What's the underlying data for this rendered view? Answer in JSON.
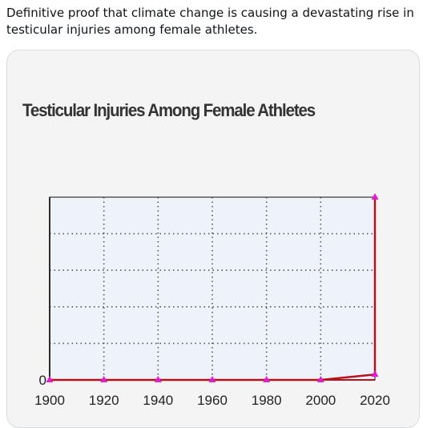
{
  "post": {
    "text": "Definitive proof that climate change is causing a devastating rise in testicular injuries among female athletes."
  },
  "chart_data": {
    "type": "line",
    "title": "Testicular Injuries Among Female Athletes",
    "xlabel": "",
    "ylabel": "",
    "x_ticks": [
      "1900",
      "1920",
      "1940",
      "1960",
      "1980",
      "2000",
      "2020"
    ],
    "y_ticks": [
      "0"
    ],
    "xlim": [
      1900,
      2020
    ],
    "ylim": [
      0,
      100
    ],
    "grid": true,
    "series": [
      {
        "x": [
          1900,
          1920,
          1940,
          1960,
          1980,
          2000,
          2020,
          2020
        ],
        "values": [
          0,
          0,
          0,
          0,
          0,
          0,
          3,
          100
        ],
        "color": "#b5121b",
        "marker_color": "#e31bd1"
      }
    ],
    "plot_background": "#eef3fb"
  },
  "colors": {
    "axis": "#b5121b",
    "grid": "#555555",
    "frame": "#333333",
    "marker": "#e31bd1"
  }
}
